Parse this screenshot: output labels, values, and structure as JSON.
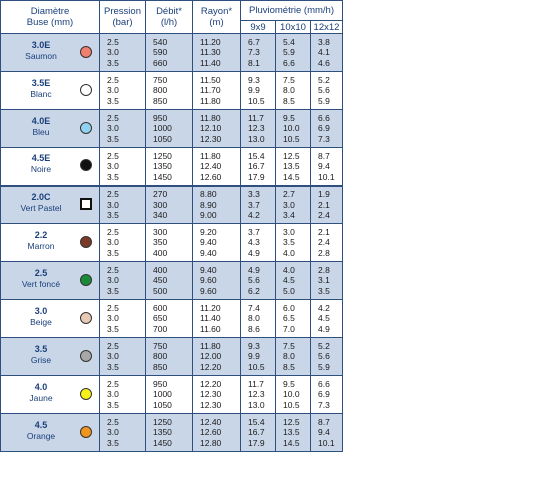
{
  "header": {
    "diametre": "Diamètre",
    "buse": "Buse (mm)",
    "pression": "Pression",
    "pression_unit": "(bar)",
    "debit": "Débit*",
    "debit_unit": "(l/h)",
    "rayon": "Rayon*",
    "rayon_unit": "(m)",
    "pluvio": "Pluviométrie (mm/h)",
    "p1": "9x9",
    "p2": "10x10",
    "p3": "12x12"
  },
  "rows": [
    {
      "code": "3.0E",
      "name": "Saumon",
      "color": "#f07f6e",
      "shape": "circle",
      "pression": [
        "2.5",
        "3.0",
        "3.5"
      ],
      "debit": [
        "540",
        "590",
        "660"
      ],
      "rayon": [
        "11.20",
        "11.30",
        "11.40"
      ],
      "p9": [
        "6.7",
        "7.3",
        "8.1"
      ],
      "p10": [
        "5.4",
        "5.9",
        "6.6"
      ],
      "p12": [
        "3.8",
        "4.1",
        "4.6"
      ]
    },
    {
      "code": "3.5E",
      "name": "Blanc",
      "color": "#ffffff",
      "shape": "circle",
      "pression": [
        "2.5",
        "3.0",
        "3.5"
      ],
      "debit": [
        "750",
        "800",
        "850"
      ],
      "rayon": [
        "11.50",
        "11.70",
        "11.80"
      ],
      "p9": [
        "9.3",
        "9.9",
        "10.5"
      ],
      "p10": [
        "7.5",
        "8.0",
        "8.5"
      ],
      "p12": [
        "5.2",
        "5.6",
        "5.9"
      ]
    },
    {
      "code": "4.0E",
      "name": "Bleu",
      "color": "#8fd3f0",
      "shape": "circle",
      "pression": [
        "2.5",
        "3.0",
        "3.5"
      ],
      "debit": [
        "950",
        "1000",
        "1050"
      ],
      "rayon": [
        "11.80",
        "12.10",
        "12.30"
      ],
      "p9": [
        "11.7",
        "12.3",
        "13.0"
      ],
      "p10": [
        "9.5",
        "10.0",
        "10.5"
      ],
      "p12": [
        "6.6",
        "6.9",
        "7.3"
      ]
    },
    {
      "code": "4.5E",
      "name": "Noire",
      "color": "#111111",
      "shape": "circle",
      "pression": [
        "2.5",
        "3.0",
        "3.5"
      ],
      "debit": [
        "1250",
        "1350",
        "1450"
      ],
      "rayon": [
        "11.80",
        "12.40",
        "12.60"
      ],
      "p9": [
        "15.4",
        "16.7",
        "17.9"
      ],
      "p10": [
        "12.5",
        "13.5",
        "14.5"
      ],
      "p12": [
        "8.7",
        "9.4",
        "10.1"
      ]
    },
    {
      "code": "2.0C",
      "name": "Vert Pastel",
      "color": "#ffffff",
      "shape": "square",
      "pression": [
        "2.5",
        "3.0",
        "3.5"
      ],
      "debit": [
        "270",
        "300",
        "340"
      ],
      "rayon": [
        "8.80",
        "8.90",
        "9.00"
      ],
      "p9": [
        "3.3",
        "3.7",
        "4.2"
      ],
      "p10": [
        "2.7",
        "3.0",
        "3.4"
      ],
      "p12": [
        "1.9",
        "2.1",
        "2.4"
      ]
    },
    {
      "code": "2.2",
      "name": "Marron",
      "color": "#7a3a2a",
      "shape": "circle",
      "pression": [
        "2.5",
        "3.0",
        "3.5"
      ],
      "debit": [
        "300",
        "350",
        "400"
      ],
      "rayon": [
        "9.20",
        "9.40",
        "9.40"
      ],
      "p9": [
        "3.7",
        "4.3",
        "4.9"
      ],
      "p10": [
        "3.0",
        "3.5",
        "4.0"
      ],
      "p12": [
        "2.1",
        "2.4",
        "2.8"
      ]
    },
    {
      "code": "2.5",
      "name": "Vert foncé",
      "color": "#1a8a3a",
      "shape": "circle",
      "pression": [
        "2.5",
        "3.0",
        "3.5"
      ],
      "debit": [
        "400",
        "450",
        "500"
      ],
      "rayon": [
        "9.40",
        "9.60",
        "9.60"
      ],
      "p9": [
        "4.9",
        "5.6",
        "6.2"
      ],
      "p10": [
        "4.0",
        "4.5",
        "5.0"
      ],
      "p12": [
        "2.8",
        "3.1",
        "3.5"
      ]
    },
    {
      "code": "3.0",
      "name": "Beige",
      "color": "#e8c9b4",
      "shape": "circle",
      "pression": [
        "2.5",
        "3.0",
        "3.5"
      ],
      "debit": [
        "600",
        "650",
        "700"
      ],
      "rayon": [
        "11.20",
        "11.40",
        "11.60"
      ],
      "p9": [
        "7.4",
        "8.0",
        "8.6"
      ],
      "p10": [
        "6.0",
        "6.5",
        "7.0"
      ],
      "p12": [
        "4.2",
        "4.5",
        "4.9"
      ]
    },
    {
      "code": "3.5",
      "name": "Grise",
      "color": "#a8a8a8",
      "shape": "circle",
      "pression": [
        "2.5",
        "3.0",
        "3.5"
      ],
      "debit": [
        "750",
        "800",
        "850"
      ],
      "rayon": [
        "11.80",
        "12.00",
        "12.20"
      ],
      "p9": [
        "9.3",
        "9.9",
        "10.5"
      ],
      "p10": [
        "7.5",
        "8.0",
        "8.5"
      ],
      "p12": [
        "5.2",
        "5.6",
        "5.9"
      ]
    },
    {
      "code": "4.0",
      "name": "Jaune",
      "color": "#f5f21a",
      "shape": "circle",
      "pression": [
        "2.5",
        "3.0",
        "3.5"
      ],
      "debit": [
        "950",
        "1000",
        "1050"
      ],
      "rayon": [
        "12.20",
        "12.30",
        "12.30"
      ],
      "p9": [
        "11.7",
        "12.3",
        "13.0"
      ],
      "p10": [
        "9.5",
        "10.0",
        "10.5"
      ],
      "p12": [
        "6.6",
        "6.9",
        "7.3"
      ]
    },
    {
      "code": "4.5",
      "name": "Orange",
      "color": "#f0961e",
      "shape": "circle",
      "pression": [
        "2.5",
        "3.0",
        "3.5"
      ],
      "debit": [
        "1250",
        "1350",
        "1450"
      ],
      "rayon": [
        "12.40",
        "12.60",
        "12.80"
      ],
      "p9": [
        "15.4",
        "16.7",
        "17.9"
      ],
      "p10": [
        "12.5",
        "13.5",
        "14.5"
      ],
      "p12": [
        "8.7",
        "9.4",
        "10.1"
      ]
    }
  ]
}
